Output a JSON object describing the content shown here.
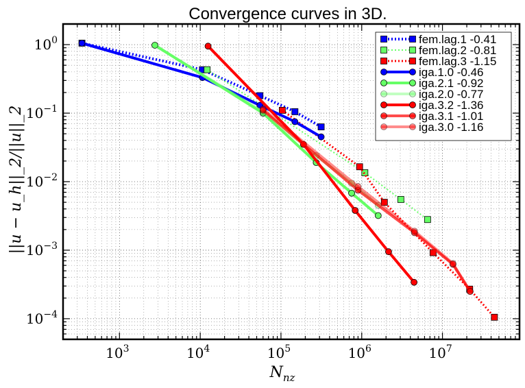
{
  "chart_data": {
    "type": "line",
    "title": "Convergence curves in 3D.",
    "xlabel_base": "N",
    "xlabel_sub": "nz",
    "ylabel": "||u − u_h||_2/||u||_2",
    "xscale": "log",
    "yscale": "log",
    "xlim": [
      200,
      90000000
    ],
    "ylim": [
      5e-05,
      2
    ],
    "grid": true,
    "legend_position": "top-right",
    "x_ticks": [
      {
        "base": "10",
        "exp": "3",
        "value": 1000
      },
      {
        "base": "10",
        "exp": "4",
        "value": 10000
      },
      {
        "base": "10",
        "exp": "5",
        "value": 100000
      },
      {
        "base": "10",
        "exp": "6",
        "value": 1000000
      },
      {
        "base": "10",
        "exp": "7",
        "value": 10000000
      }
    ],
    "y_ticks": [
      {
        "base": "10",
        "exp": "0",
        "value": 1
      },
      {
        "base": "10",
        "exp": "−1",
        "value": 0.1
      },
      {
        "base": "10",
        "exp": "−2",
        "value": 0.01
      },
      {
        "base": "10",
        "exp": "−3",
        "value": 0.001
      },
      {
        "base": "10",
        "exp": "−4",
        "value": 0.0001
      }
    ],
    "series": [
      {
        "name": "fem.lag.1 -0.41",
        "color": "#0000ff",
        "alpha": 1.0,
        "marker": "square",
        "linestyle": "dotted",
        "width": 4,
        "x": [
          343,
          10648,
          54872,
          148877,
          314432
        ],
        "y": [
          1.05,
          0.43,
          0.18,
          0.105,
          0.063
        ]
      },
      {
        "name": "fem.lag.2 -0.81",
        "color": "#66ff66",
        "alpha": 1.0,
        "marker": "square",
        "linestyle": "dotted",
        "width": 2,
        "x": [
          12167,
          1092727,
          3048625,
          6539203
        ],
        "y": [
          0.43,
          0.0135,
          0.0055,
          0.0028
        ]
      },
      {
        "name": "fem.lag.3 -1.15",
        "color": "#ff0000",
        "alpha": 1.0,
        "marker": "square",
        "linestyle": "dotted",
        "width": 3,
        "x": [
          103823,
          941192,
          1906624,
          7645373,
          21717639,
          43986977
        ],
        "y": [
          0.11,
          0.0165,
          0.005,
          0.00092,
          0.00027,
          0.000105
        ]
      },
      {
        "name": "iga.1.0 -0.46",
        "color": "#0000ff",
        "alpha": 1.0,
        "marker": "circle",
        "linestyle": "solid",
        "width": 4,
        "x": [
          343,
          10648,
          54872,
          148877,
          314432
        ],
        "y": [
          1.05,
          0.33,
          0.13,
          0.075,
          0.045
        ]
      },
      {
        "name": "iga.2.1 -0.92",
        "color": "#66ff66",
        "alpha": 1.0,
        "marker": "circle",
        "linestyle": "solid",
        "width": 4,
        "x": [
          2744,
          60000,
          273000,
          750000,
          1600000
        ],
        "y": [
          0.98,
          0.1,
          0.019,
          0.0068,
          0.0032
        ]
      },
      {
        "name": "iga.2.0 -0.77",
        "color": "#66ff66",
        "alpha": 0.4,
        "marker": "circle",
        "linestyle": "solid",
        "width": 4,
        "x": [
          2744,
          60000,
          273000,
          750000,
          1600000
        ],
        "y": [
          0.98,
          0.105,
          0.024,
          0.0095,
          0.0045
        ]
      },
      {
        "name": "iga.3.2 -1.36",
        "color": "#ff0000",
        "alpha": 1.0,
        "marker": "circle",
        "linestyle": "solid",
        "width": 4,
        "x": [
          12500,
          190000,
          830000,
          2150000,
          4450000
        ],
        "y": [
          0.95,
          0.035,
          0.0038,
          0.00095,
          0.00034
        ]
      },
      {
        "name": "iga.3.1 -1.01",
        "color": "#ff0000",
        "alpha": 0.7,
        "marker": "circle",
        "linestyle": "solid",
        "width": 4,
        "x": [
          60000,
          900000,
          4500000,
          13500000,
          22000000
        ],
        "y": [
          0.11,
          0.0075,
          0.0018,
          0.00062,
          0.00025
        ]
      },
      {
        "name": "iga.3.0 -1.16",
        "color": "#ff0000",
        "alpha": 0.45,
        "marker": "circle",
        "linestyle": "solid",
        "width": 4,
        "x": [
          60000,
          900000,
          4500000,
          13500000,
          22000000
        ],
        "y": [
          0.115,
          0.0085,
          0.0019,
          0.00064,
          0.00025
        ]
      }
    ]
  }
}
